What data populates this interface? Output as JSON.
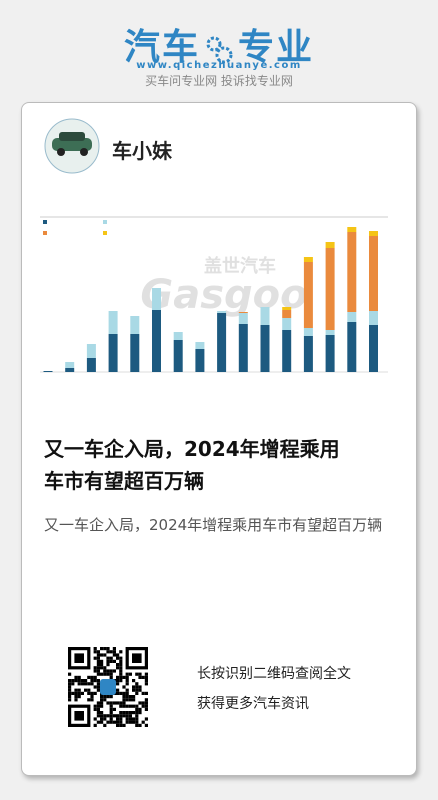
{
  "header": {
    "logo_left": "汽车",
    "logo_right": "专业",
    "url": "www.qichezhuanye.com",
    "slogan": "买车问专业网 投诉找专业网"
  },
  "author": {
    "name": "车小妹"
  },
  "chart": {
    "type": "bar",
    "stacked": true,
    "watermark_cn": "盖世汽车",
    "watermark_en": "Gasgoo",
    "series": [
      {
        "color": "#1d5a80",
        "values": [
          1,
          4,
          14,
          38,
          38,
          62,
          32,
          23,
          59,
          48,
          47,
          42,
          36,
          37,
          50,
          47
        ]
      },
      {
        "color": "#a9d9e5",
        "values": [
          0,
          6,
          14,
          23,
          18,
          22,
          8,
          7,
          2,
          11,
          18,
          12,
          8,
          5,
          10,
          14
        ]
      },
      {
        "color": "#ea8a3d",
        "values": [
          0,
          0,
          0,
          0,
          0,
          0,
          0,
          0,
          0,
          1,
          0,
          8,
          66,
          82,
          80,
          75
        ]
      },
      {
        "color": "#f5c416",
        "values": [
          0,
          0,
          0,
          0,
          0,
          0,
          0,
          0,
          0,
          0,
          0,
          3,
          5,
          6,
          5,
          5
        ]
      }
    ]
  },
  "article": {
    "title": "又一车企入局，2024年增程乘用车市有望超百万辆",
    "summary": "又一车企入局，2024年增程乘用车市有望超百万辆"
  },
  "footer": {
    "line1": "长按识别二维码查阅全文",
    "line2": "获得更多汽车资讯"
  }
}
